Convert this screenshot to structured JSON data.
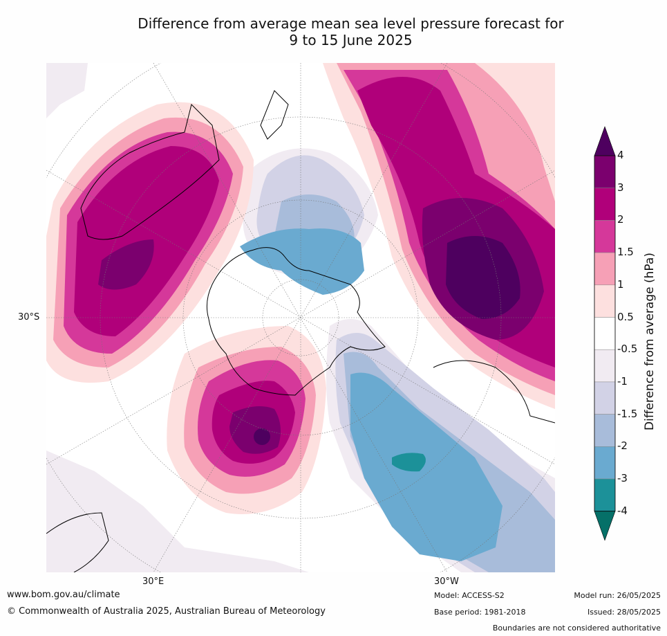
{
  "title_line1": "Difference from average mean sea level pressure forecast for",
  "title_line2": "9 to 15 June 2025",
  "map": {
    "projection": "south-polar-stereographic",
    "lat_label": "30°S",
    "lon_labels": [
      "30°E",
      "30°W"
    ],
    "features": [
      "Australia",
      "New Zealand",
      "Antarctica",
      "South America",
      "Africa"
    ]
  },
  "colorbar": {
    "title": "Difference from average (hPa)",
    "ticks": [
      "4",
      "3",
      "2",
      "1.5",
      "1",
      "0.5",
      "-0.5",
      "-1",
      "-1.5",
      "-2",
      "-3",
      "-4"
    ],
    "colors": [
      "#4e005f",
      "#7b006e",
      "#b0007a",
      "#d5389a",
      "#f6a0b6",
      "#fde0df",
      "#ffffff",
      "#f1ebf2",
      "#d2d2e6",
      "#a8bcda",
      "#6aaad0",
      "#1c9199",
      "#057068"
    ]
  },
  "footer": {
    "url": "www.bom.gov.au/climate",
    "copyright": "© Commonwealth of Australia 2025, Australian Bureau of Meteorology",
    "model": "Model: ACCESS-S2",
    "base_period": "Base period: 1981-2018",
    "model_run": "Model run: 26/05/2025",
    "issued": "Issued: 28/05/2025",
    "disclaimer": "Boundaries are not considered authoritative"
  }
}
